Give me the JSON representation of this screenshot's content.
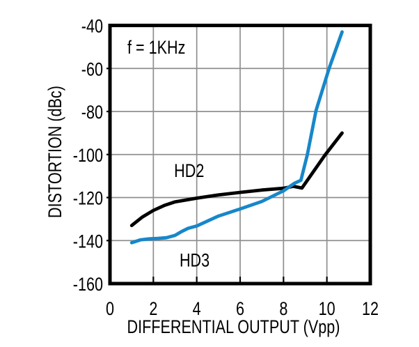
{
  "chart_data": {
    "type": "line",
    "title": "",
    "xlabel": "DIFFERENTIAL OUTPUT (Vpp)",
    "ylabel": "DISTORTION (dBc)",
    "annotation": "f = 1KHz",
    "xlim": [
      0,
      12
    ],
    "ylim": [
      -160,
      -40
    ],
    "xticks": [
      0,
      2,
      4,
      6,
      8,
      10,
      12
    ],
    "yticks": [
      -40,
      -60,
      -80,
      -100,
      -120,
      -140,
      -160
    ],
    "grid": true,
    "legend_position": "inline-labels",
    "colors": {
      "hd2": "#000000",
      "hd3": "#1787c9",
      "grid": "#8f8f8f",
      "frame": "#000000"
    },
    "series": [
      {
        "name": "HD2",
        "color_key": "hd2",
        "points": [
          [
            1,
            -133
          ],
          [
            1.5,
            -129
          ],
          [
            2,
            -126
          ],
          [
            2.5,
            -123.7
          ],
          [
            3,
            -122
          ],
          [
            4,
            -120.3
          ],
          [
            5,
            -118.8
          ],
          [
            6,
            -117.6
          ],
          [
            7,
            -116.5
          ],
          [
            8,
            -115.7
          ],
          [
            8.45,
            -114.8
          ],
          [
            8.85,
            -115.6
          ],
          [
            9.9,
            -100.4
          ],
          [
            10.7,
            -90
          ]
        ],
        "label": {
          "text": "HD2",
          "x": 3.65,
          "y": -110.5
        }
      },
      {
        "name": "HD3",
        "color_key": "hd3",
        "points": [
          [
            1,
            -141
          ],
          [
            1.4,
            -139.7
          ],
          [
            1.8,
            -139.2
          ],
          [
            2.2,
            -139
          ],
          [
            2.6,
            -138.7
          ],
          [
            3,
            -137.6
          ],
          [
            3.3,
            -135.8
          ],
          [
            3.6,
            -134.3
          ],
          [
            4,
            -133.2
          ],
          [
            5,
            -128.6
          ],
          [
            6,
            -125.3
          ],
          [
            7,
            -121.8
          ],
          [
            8,
            -116.9
          ],
          [
            8.5,
            -113.4
          ],
          [
            8.8,
            -112
          ],
          [
            9.1,
            -100
          ],
          [
            9.5,
            -79.5
          ],
          [
            10.1,
            -60
          ],
          [
            10.7,
            -43
          ]
        ],
        "label": {
          "text": "HD3",
          "x": 3.9,
          "y": -152
        }
      }
    ]
  }
}
